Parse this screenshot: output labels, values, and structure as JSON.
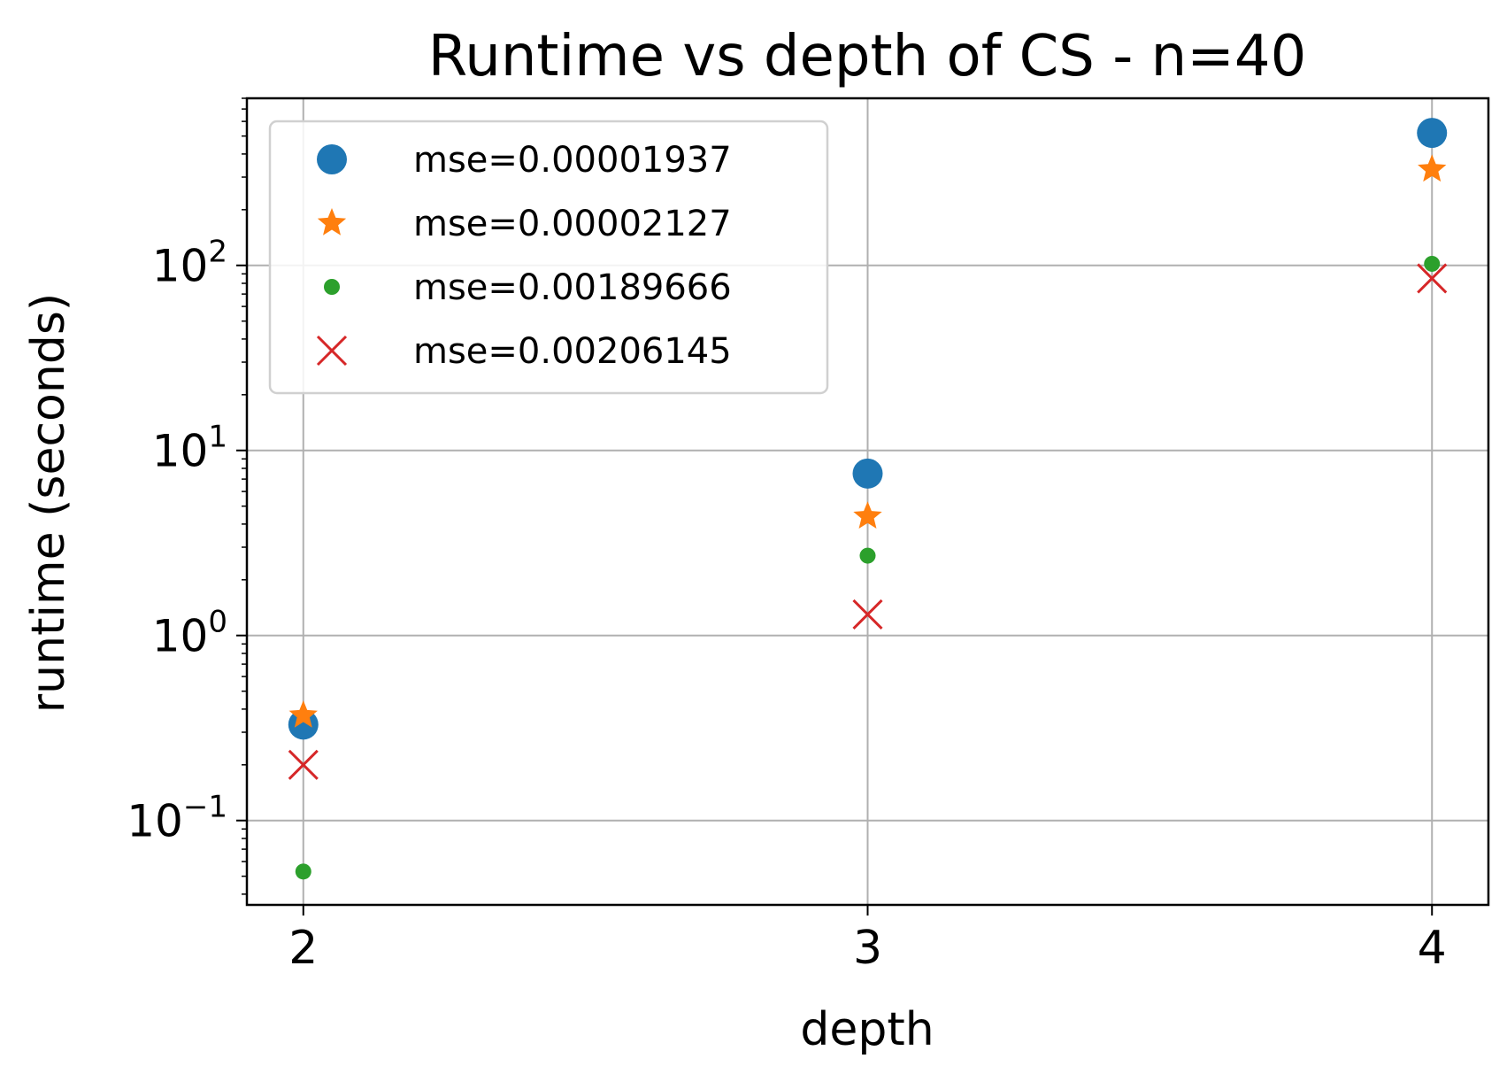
{
  "chart_data": {
    "type": "scatter",
    "title": "Runtime vs depth of CS - n=40",
    "xlabel": "depth",
    "ylabel": "runtime (seconds)",
    "yscale": "log",
    "xlim": [
      1.9,
      4.1
    ],
    "ylim": [
      0.035,
      800
    ],
    "x_ticks": [
      2,
      3,
      4
    ],
    "y_ticks": [
      {
        "value": 0.1,
        "base": "10",
        "exp": "−1"
      },
      {
        "value": 1,
        "base": "10",
        "exp": "0"
      },
      {
        "value": 10,
        "base": "10",
        "exp": "1"
      },
      {
        "value": 100,
        "base": "10",
        "exp": "2"
      }
    ],
    "grid": true,
    "legend_position": "upper-left",
    "series": [
      {
        "name": "mse=0.00001937",
        "marker": "circle",
        "color": "#1f77b4",
        "x": [
          2,
          3,
          4
        ],
        "y": [
          0.33,
          7.5,
          520
        ]
      },
      {
        "name": "mse=0.00002127",
        "marker": "star",
        "color": "#ff7f0e",
        "x": [
          2,
          3,
          4
        ],
        "y": [
          0.37,
          4.4,
          330
        ]
      },
      {
        "name": "mse=0.00189666",
        "marker": "point",
        "color": "#2ca02c",
        "x": [
          2,
          3,
          4
        ],
        "y": [
          0.053,
          2.7,
          102
        ]
      },
      {
        "name": "mse=0.00206145",
        "marker": "x",
        "color": "#d62728",
        "x": [
          2,
          3,
          4
        ],
        "y": [
          0.2,
          1.3,
          85
        ]
      }
    ]
  }
}
